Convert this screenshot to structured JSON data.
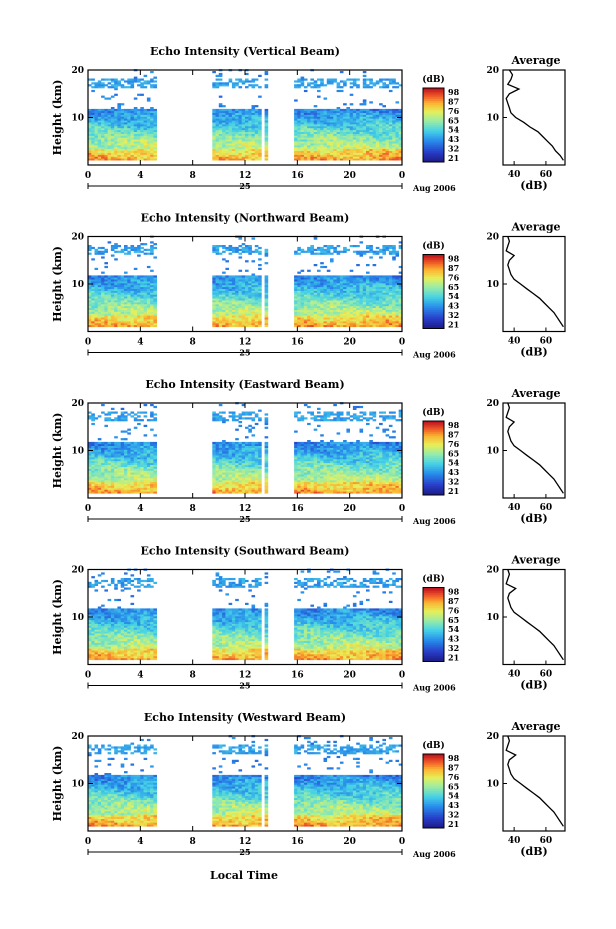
{
  "chart_data": [
    {
      "type": "heatmap",
      "title": "Echo Intensity (Vertical Beam)",
      "ylabel": "Height (km)",
      "xticks": [
        "0",
        "4",
        "8",
        "12",
        "16",
        "20",
        "0"
      ],
      "yticks": [
        "20",
        "10"
      ],
      "xlim": [
        0,
        24
      ],
      "ylim": [
        0,
        20
      ],
      "date_label": "25",
      "month_label": "Aug 2006",
      "colorbar": {
        "unit": "(dB)",
        "ticks": [
          "98",
          "87",
          "76",
          "65",
          "54",
          "43",
          "32",
          "21"
        ]
      },
      "data_gaps": [
        [
          5.3,
          9.5
        ],
        [
          13.3,
          13.5
        ],
        [
          13.8,
          15.8
        ]
      ],
      "profile": {
        "title": "Average",
        "xlabel": "(dB)",
        "xticks": [
          "40",
          "60"
        ],
        "yticks": [
          "20",
          "10"
        ],
        "xlim": [
          33,
          72
        ],
        "heights": [
          20,
          19,
          18,
          17,
          16,
          15,
          14,
          13,
          12,
          11,
          10,
          9,
          8,
          7,
          6,
          5,
          4,
          3,
          2,
          1
        ],
        "values": [
          37,
          39,
          38,
          36,
          43,
          37,
          35,
          36,
          37,
          38,
          41,
          46,
          50,
          55,
          58,
          61,
          64,
          66,
          69,
          71
        ]
      }
    },
    {
      "type": "heatmap",
      "title": "Echo Intensity (Northward Beam)",
      "ylabel": "Height (km)",
      "xticks": [
        "0",
        "4",
        "8",
        "12",
        "16",
        "20",
        "0"
      ],
      "yticks": [
        "20",
        "10"
      ],
      "xlim": [
        0,
        24
      ],
      "ylim": [
        0,
        20
      ],
      "date_label": "25",
      "month_label": "Aug 2006",
      "colorbar": {
        "unit": "(dB)",
        "ticks": [
          "98",
          "87",
          "76",
          "65",
          "54",
          "43",
          "32",
          "21"
        ]
      },
      "data_gaps": [
        [
          5.3,
          9.5
        ],
        [
          13.3,
          13.5
        ],
        [
          13.8,
          15.8
        ]
      ],
      "profile": {
        "title": "Average",
        "xlabel": "(dB)",
        "xticks": [
          "40",
          "60"
        ],
        "yticks": [
          "20",
          "10"
        ],
        "xlim": [
          33,
          72
        ],
        "heights": [
          20,
          19,
          18,
          17,
          16,
          15,
          14,
          13,
          12,
          11,
          10,
          9,
          8,
          7,
          6,
          5,
          4,
          3,
          2,
          1
        ],
        "values": [
          36,
          37,
          36,
          35,
          40,
          37,
          36,
          37,
          38,
          40,
          44,
          48,
          52,
          56,
          59,
          62,
          65,
          67,
          69,
          71
        ]
      }
    },
    {
      "type": "heatmap",
      "title": "Echo Intensity (Eastward Beam)",
      "ylabel": "Height (km)",
      "xticks": [
        "0",
        "4",
        "8",
        "12",
        "16",
        "20",
        "0"
      ],
      "yticks": [
        "20",
        "10"
      ],
      "xlim": [
        0,
        24
      ],
      "ylim": [
        0,
        20
      ],
      "date_label": "25",
      "month_label": "Aug 2006",
      "colorbar": {
        "unit": "(dB)",
        "ticks": [
          "98",
          "87",
          "76",
          "65",
          "54",
          "43",
          "32",
          "21"
        ]
      },
      "data_gaps": [
        [
          5.3,
          9.5
        ],
        [
          13.3,
          13.5
        ],
        [
          13.8,
          15.8
        ]
      ],
      "profile": {
        "title": "Average",
        "xlabel": "(dB)",
        "xticks": [
          "40",
          "60"
        ],
        "yticks": [
          "20",
          "10"
        ],
        "xlim": [
          33,
          72
        ],
        "heights": [
          20,
          19,
          18,
          17,
          16,
          15,
          14,
          13,
          12,
          11,
          10,
          9,
          8,
          7,
          6,
          5,
          4,
          3,
          2,
          1
        ],
        "values": [
          36,
          37,
          36,
          35,
          40,
          37,
          36,
          37,
          38,
          40,
          44,
          48,
          52,
          56,
          59,
          62,
          65,
          67,
          69,
          71
        ]
      }
    },
    {
      "type": "heatmap",
      "title": "Echo Intensity (Southward Beam)",
      "ylabel": "Height (km)",
      "xticks": [
        "0",
        "4",
        "8",
        "12",
        "16",
        "20",
        "0"
      ],
      "yticks": [
        "20",
        "10"
      ],
      "xlim": [
        0,
        24
      ],
      "ylim": [
        0,
        20
      ],
      "date_label": "25",
      "month_label": "Aug 2006",
      "colorbar": {
        "unit": "(dB)",
        "ticks": [
          "98",
          "87",
          "76",
          "65",
          "54",
          "43",
          "32",
          "21"
        ]
      },
      "data_gaps": [
        [
          5.3,
          9.5
        ],
        [
          13.3,
          13.5
        ],
        [
          13.8,
          15.8
        ]
      ],
      "profile": {
        "title": "Average",
        "xlabel": "(dB)",
        "xticks": [
          "40",
          "60"
        ],
        "yticks": [
          "20",
          "10"
        ],
        "xlim": [
          33,
          72
        ],
        "heights": [
          20,
          19,
          18,
          17,
          16,
          15,
          14,
          13,
          12,
          11,
          10,
          9,
          8,
          7,
          6,
          5,
          4,
          3,
          2,
          1
        ],
        "values": [
          36,
          37,
          36,
          35,
          41,
          37,
          36,
          37,
          38,
          40,
          44,
          48,
          52,
          56,
          59,
          62,
          65,
          67,
          69,
          71
        ]
      }
    },
    {
      "type": "heatmap",
      "title": "Echo Intensity (Westward Beam)",
      "ylabel": "Height (km)",
      "xticks": [
        "0",
        "4",
        "8",
        "12",
        "16",
        "20",
        "0"
      ],
      "yticks": [
        "20",
        "10"
      ],
      "xlim": [
        0,
        24
      ],
      "ylim": [
        0,
        20
      ],
      "date_label": "25",
      "month_label": "Aug 2006",
      "colorbar": {
        "unit": "(dB)",
        "ticks": [
          "98",
          "87",
          "76",
          "65",
          "54",
          "43",
          "32",
          "21"
        ]
      },
      "data_gaps": [
        [
          5.3,
          9.5
        ],
        [
          13.3,
          13.5
        ],
        [
          13.8,
          15.8
        ]
      ],
      "profile": {
        "title": "Average",
        "xlabel": "(dB)",
        "xticks": [
          "40",
          "60"
        ],
        "yticks": [
          "20",
          "10"
        ],
        "xlim": [
          33,
          72
        ],
        "heights": [
          20,
          19,
          18,
          17,
          16,
          15,
          14,
          13,
          12,
          11,
          10,
          9,
          8,
          7,
          6,
          5,
          4,
          3,
          2,
          1
        ],
        "values": [
          36,
          37,
          36,
          35,
          41,
          37,
          36,
          37,
          38,
          40,
          44,
          48,
          52,
          56,
          59,
          62,
          65,
          67,
          69,
          71
        ]
      }
    }
  ],
  "bottom_label": "Local Time"
}
